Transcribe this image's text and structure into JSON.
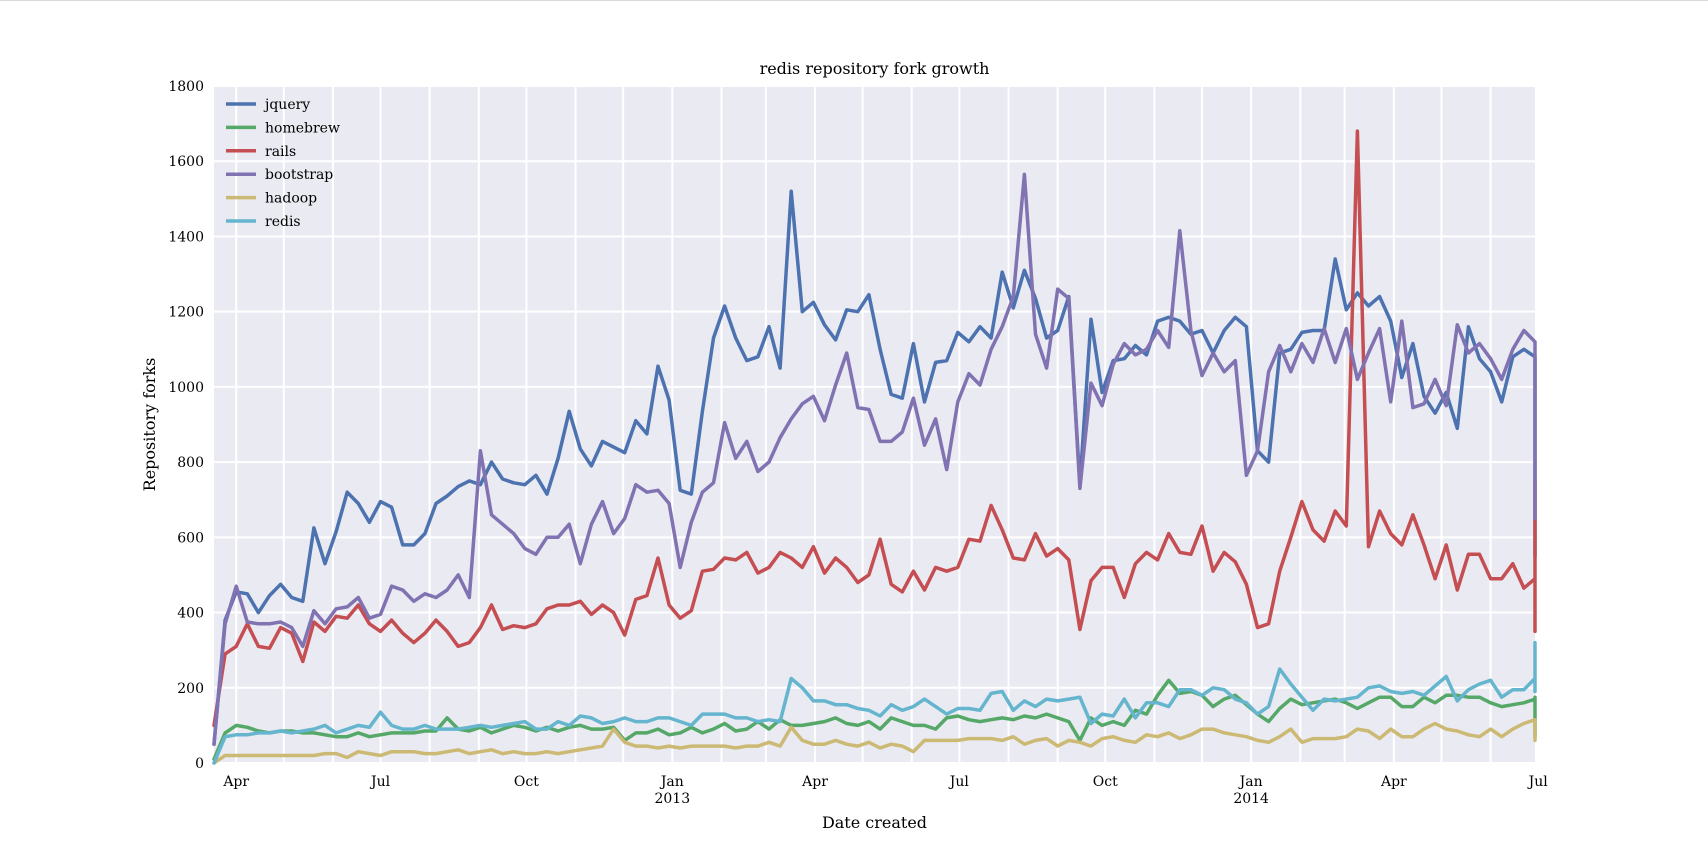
{
  "chart_data": {
    "type": "line",
    "title": "redis repository fork growth",
    "xlabel": "Date created",
    "ylabel": "Repository forks",
    "ylim": [
      0,
      1800
    ],
    "xlim": [
      "2012-03-18",
      "2014-06-29"
    ],
    "x_tick_labels": [
      {
        "label": "Apr",
        "sub": "",
        "date": "2012-04-01"
      },
      {
        "label": "Jul",
        "sub": "",
        "date": "2012-07-01"
      },
      {
        "label": "Oct",
        "sub": "",
        "date": "2012-10-01"
      },
      {
        "label": "Jan",
        "sub": "2013",
        "date": "2013-01-01"
      },
      {
        "label": "Apr",
        "sub": "",
        "date": "2013-04-01"
      },
      {
        "label": "Jul",
        "sub": "",
        "date": "2013-07-01"
      },
      {
        "label": "Oct",
        "sub": "",
        "date": "2013-10-01"
      },
      {
        "label": "Jan",
        "sub": "2014",
        "date": "2014-01-01"
      },
      {
        "label": "Apr",
        "sub": "",
        "date": "2014-04-01"
      },
      {
        "label": "Jul",
        "sub": "",
        "date": "2014-07-01"
      }
    ],
    "y_ticks": [
      0,
      200,
      400,
      600,
      800,
      1000,
      1200,
      1400,
      1600,
      1800
    ],
    "grid": true,
    "legend_position": "top-left",
    "x_frequency": "weekly",
    "x_start": "2012-03-18",
    "series": [
      {
        "name": "jquery",
        "color": "#4c72b0",
        "values": [
          50,
          380,
          455,
          450,
          400,
          445,
          475,
          440,
          430,
          625,
          530,
          615,
          720,
          690,
          640,
          695,
          680,
          580,
          580,
          610,
          690,
          710,
          735,
          750,
          740,
          800,
          755,
          745,
          740,
          765,
          715,
          810,
          935,
          835,
          790,
          855,
          840,
          825,
          910,
          875,
          1055,
          965,
          725,
          715,
          935,
          1130,
          1215,
          1130,
          1070,
          1080,
          1160,
          1050,
          1520,
          1200,
          1225,
          1165,
          1125,
          1205,
          1200,
          1245,
          1100,
          980,
          970,
          1115,
          960,
          1065,
          1070,
          1145,
          1120,
          1160,
          1130,
          1305,
          1210,
          1310,
          1235,
          1130,
          1150,
          1240,
          740,
          1180,
          985,
          1070,
          1075,
          1110,
          1085,
          1175,
          1185,
          1175,
          1140,
          1150,
          1090,
          1150,
          1185,
          1160,
          830,
          800,
          1090,
          1100,
          1145,
          1150,
          1150,
          1340,
          1205,
          1250,
          1215,
          1240,
          1175,
          1025,
          1115,
          975,
          930,
          985,
          890,
          1160,
          1075,
          1040,
          960,
          1080,
          1100,
          1080,
          1060,
          550
        ]
      },
      {
        "name": "homebrew",
        "color": "#55a868",
        "values": [
          10,
          80,
          100,
          95,
          85,
          80,
          85,
          85,
          80,
          80,
          75,
          70,
          70,
          80,
          70,
          75,
          80,
          80,
          80,
          85,
          85,
          120,
          90,
          85,
          95,
          80,
          90,
          100,
          95,
          85,
          95,
          85,
          95,
          100,
          90,
          90,
          95,
          60,
          80,
          80,
          90,
          75,
          80,
          95,
          80,
          90,
          105,
          85,
          90,
          110,
          90,
          115,
          100,
          100,
          105,
          110,
          120,
          105,
          100,
          110,
          90,
          120,
          110,
          100,
          100,
          90,
          120,
          125,
          115,
          110,
          115,
          120,
          115,
          125,
          120,
          130,
          120,
          110,
          60,
          120,
          100,
          110,
          100,
          140,
          130,
          180,
          220,
          185,
          190,
          180,
          150,
          170,
          180,
          155,
          130,
          110,
          145,
          170,
          155,
          160,
          165,
          170,
          160,
          145,
          160,
          175,
          175,
          150,
          150,
          175,
          160,
          180,
          180,
          175,
          175,
          160,
          150,
          155,
          160,
          170,
          175,
          70
        ]
      },
      {
        "name": "rails",
        "color": "#c44e52",
        "values": [
          100,
          290,
          310,
          370,
          310,
          305,
          360,
          345,
          270,
          375,
          350,
          390,
          385,
          420,
          370,
          350,
          380,
          345,
          320,
          345,
          380,
          350,
          310,
          320,
          360,
          420,
          355,
          365,
          360,
          370,
          410,
          420,
          420,
          430,
          395,
          420,
          400,
          340,
          435,
          445,
          545,
          420,
          385,
          405,
          510,
          515,
          545,
          540,
          560,
          505,
          520,
          560,
          545,
          520,
          575,
          505,
          545,
          520,
          480,
          500,
          595,
          475,
          455,
          510,
          460,
          520,
          510,
          520,
          595,
          590,
          685,
          620,
          545,
          540,
          610,
          550,
          570,
          540,
          355,
          485,
          520,
          520,
          440,
          530,
          560,
          540,
          610,
          560,
          555,
          630,
          510,
          560,
          535,
          475,
          360,
          370,
          510,
          600,
          695,
          620,
          590,
          670,
          630,
          1680,
          575,
          670,
          610,
          580,
          660,
          580,
          490,
          580,
          460,
          555,
          555,
          490,
          490,
          530,
          465,
          490,
          750,
          350
        ]
      },
      {
        "name": "bootstrap",
        "color": "#8172b2",
        "values": [
          50,
          370,
          470,
          375,
          370,
          370,
          375,
          360,
          310,
          405,
          370,
          410,
          415,
          440,
          385,
          395,
          470,
          460,
          430,
          450,
          440,
          460,
          500,
          440,
          830,
          660,
          635,
          610,
          570,
          555,
          600,
          600,
          635,
          530,
          635,
          695,
          610,
          650,
          740,
          720,
          725,
          690,
          520,
          640,
          720,
          745,
          905,
          810,
          855,
          775,
          800,
          865,
          915,
          955,
          975,
          910,
          1005,
          1090,
          945,
          940,
          855,
          855,
          880,
          970,
          845,
          915,
          780,
          960,
          1035,
          1005,
          1100,
          1160,
          1240,
          1565,
          1140,
          1050,
          1260,
          1235,
          730,
          1010,
          950,
          1060,
          1115,
          1085,
          1100,
          1150,
          1105,
          1415,
          1150,
          1030,
          1090,
          1040,
          1070,
          765,
          830,
          1040,
          1110,
          1040,
          1115,
          1065,
          1155,
          1065,
          1155,
          1020,
          1090,
          1155,
          960,
          1175,
          945,
          955,
          1020,
          950,
          1165,
          1090,
          1115,
          1075,
          1020,
          1100,
          1150,
          1120,
          650
        ]
      },
      {
        "name": "hadoop",
        "color": "#ccb974",
        "values": [
          0,
          20,
          20,
          20,
          20,
          20,
          20,
          20,
          20,
          20,
          25,
          25,
          15,
          30,
          25,
          20,
          30,
          30,
          30,
          25,
          25,
          30,
          35,
          25,
          30,
          35,
          25,
          30,
          25,
          25,
          30,
          25,
          30,
          35,
          40,
          45,
          90,
          55,
          45,
          45,
          40,
          45,
          40,
          45,
          45,
          45,
          45,
          40,
          45,
          45,
          55,
          45,
          95,
          60,
          50,
          50,
          60,
          50,
          45,
          55,
          40,
          50,
          45,
          30,
          60,
          60,
          60,
          60,
          65,
          65,
          65,
          60,
          70,
          50,
          60,
          65,
          45,
          60,
          55,
          45,
          65,
          70,
          60,
          55,
          75,
          70,
          80,
          65,
          75,
          90,
          90,
          80,
          75,
          70,
          60,
          55,
          70,
          90,
          55,
          65,
          65,
          65,
          70,
          90,
          85,
          65,
          90,
          70,
          70,
          90,
          105,
          90,
          85,
          75,
          70,
          90,
          70,
          90,
          105,
          115,
          60
        ]
      },
      {
        "name": "redis",
        "color": "#64b5cd",
        "values": [
          0,
          70,
          75,
          75,
          80,
          80,
          85,
          80,
          85,
          90,
          100,
          80,
          90,
          100,
          95,
          135,
          100,
          90,
          90,
          100,
          90,
          90,
          90,
          95,
          100,
          95,
          100,
          105,
          110,
          90,
          90,
          110,
          100,
          125,
          120,
          105,
          110,
          120,
          110,
          110,
          120,
          120,
          110,
          100,
          130,
          130,
          130,
          120,
          120,
          110,
          115,
          110,
          225,
          200,
          165,
          165,
          155,
          155,
          145,
          140,
          125,
          155,
          140,
          150,
          170,
          150,
          130,
          145,
          145,
          140,
          185,
          190,
          140,
          165,
          150,
          170,
          165,
          170,
          175,
          105,
          130,
          125,
          170,
          120,
          160,
          160,
          150,
          195,
          195,
          180,
          200,
          195,
          170,
          160,
          130,
          150,
          250,
          210,
          175,
          140,
          170,
          165,
          170,
          175,
          200,
          205,
          190,
          185,
          190,
          180,
          205,
          230,
          165,
          195,
          210,
          220,
          175,
          195,
          195,
          225,
          320,
          190
        ]
      }
    ]
  }
}
